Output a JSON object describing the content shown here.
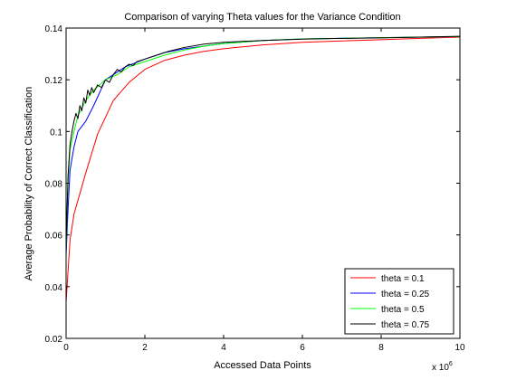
{
  "chart_data": {
    "type": "line",
    "title": "Comparison of varying Theta values for the Variance Condition",
    "xlabel": "Accessed Data Points",
    "ylabel": "Average Probability of Correct Classification",
    "x_exponent_label": "x 10",
    "x_exponent_power": "6",
    "xlim": [
      0,
      10
    ],
    "ylim": [
      0.02,
      0.14
    ],
    "x_ticks": [
      0,
      2,
      4,
      6,
      8,
      10
    ],
    "x_tick_labels": [
      "0",
      "2",
      "4",
      "6",
      "8",
      "10"
    ],
    "y_ticks": [
      0.02,
      0.04,
      0.06,
      0.08,
      0.1,
      0.12,
      0.14
    ],
    "y_tick_labels": [
      "0.02",
      "0.04",
      "0.06",
      "0.08",
      "0.1",
      "0.12",
      "0.14"
    ],
    "grid": false,
    "legend_position": "bottom-right",
    "series": [
      {
        "name": "theta = 0.1",
        "color": "#ff0000",
        "x": [
          0,
          0.1,
          0.2,
          0.5,
          0.8,
          1.2,
          1.6,
          2.0,
          2.5,
          3.0,
          3.5,
          4.0,
          5.0,
          6.0,
          7.0,
          8.0,
          9.0,
          10.0
        ],
        "y": [
          0.034,
          0.058,
          0.068,
          0.084,
          0.099,
          0.112,
          0.119,
          0.124,
          0.1275,
          0.1295,
          0.131,
          0.132,
          0.1335,
          0.1345,
          0.135,
          0.1355,
          0.136,
          0.1365
        ]
      },
      {
        "name": "theta = 0.25",
        "color": "#0000ff",
        "x": [
          0,
          0.05,
          0.1,
          0.2,
          0.3,
          0.5,
          0.7,
          1.0,
          1.5,
          2.0,
          2.5,
          3.0,
          3.5,
          4.0,
          5.0,
          6.0,
          8.0,
          10.0
        ],
        "y": [
          0.052,
          0.07,
          0.085,
          0.094,
          0.1,
          0.104,
          0.11,
          0.12,
          0.125,
          0.128,
          0.1305,
          0.132,
          0.133,
          0.134,
          0.1352,
          0.1358,
          0.1363,
          0.1367
        ]
      },
      {
        "name": "theta = 0.5",
        "color": "#00ff00",
        "x": [
          0,
          0.05,
          0.1,
          0.2,
          0.3,
          0.5,
          0.7,
          1.0,
          1.3,
          1.6,
          2.0,
          2.5,
          3.0,
          3.5,
          4.0,
          5.0,
          6.0,
          8.0,
          10.0
        ],
        "y": [
          0.054,
          0.08,
          0.093,
          0.1,
          0.106,
          0.112,
          0.116,
          0.12,
          0.122,
          0.125,
          0.127,
          0.1295,
          0.1315,
          0.133,
          0.134,
          0.1352,
          0.1358,
          0.1363,
          0.1367
        ]
      },
      {
        "name": "theta = 0.75",
        "color": "#000000",
        "x": [
          0,
          0.05,
          0.1,
          0.15,
          0.2,
          0.25,
          0.3,
          0.35,
          0.4,
          0.45,
          0.5,
          0.55,
          0.6,
          0.65,
          0.7,
          0.8,
          0.9,
          1.0,
          1.1,
          1.2,
          1.3,
          1.4,
          1.5,
          1.6,
          1.7,
          1.8,
          2.0,
          2.3,
          2.6,
          3.0,
          3.5,
          4.0,
          5.0,
          6.0,
          7.0,
          8.0,
          9.0,
          10.0
        ],
        "y": [
          0.056,
          0.083,
          0.095,
          0.1,
          0.104,
          0.107,
          0.105,
          0.11,
          0.108,
          0.113,
          0.111,
          0.116,
          0.114,
          0.117,
          0.115,
          0.118,
          0.117,
          0.12,
          0.119,
          0.122,
          0.124,
          0.123,
          0.125,
          0.126,
          0.1255,
          0.127,
          0.128,
          0.1295,
          0.131,
          0.1325,
          0.1338,
          0.1345,
          0.1352,
          0.1357,
          0.136,
          0.1362,
          0.1365,
          0.1368
        ]
      }
    ]
  }
}
